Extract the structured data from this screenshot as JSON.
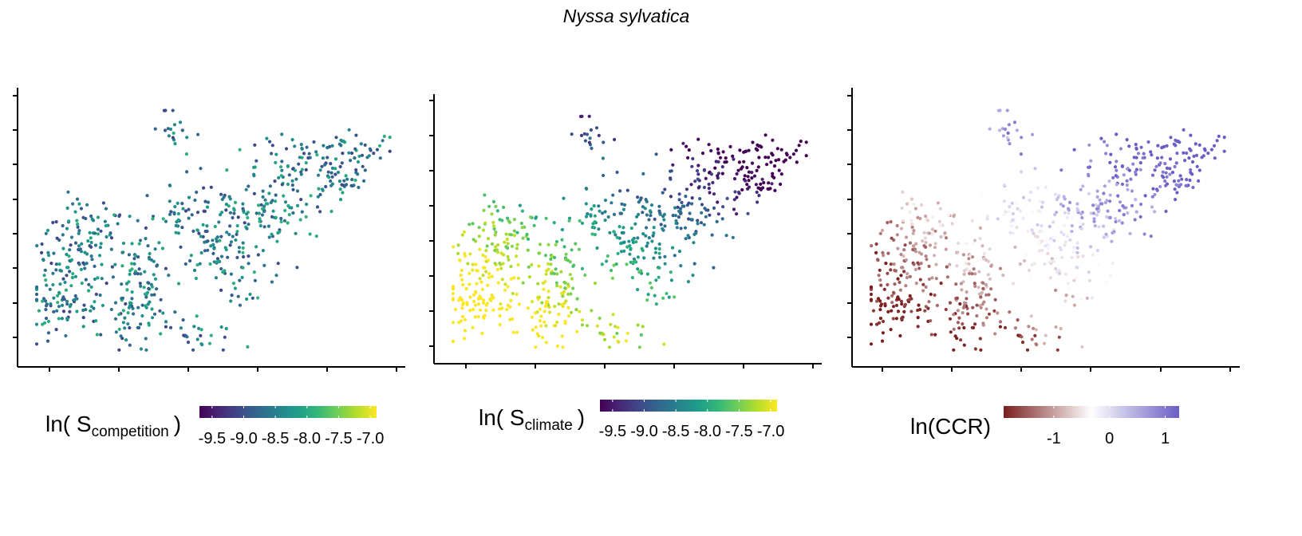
{
  "title": "Nyssa sylvatica",
  "chart_data": [
    {
      "type": "scatter",
      "panel": "competition",
      "legend": {
        "title_prefix": "ln(",
        "title_main": "S",
        "title_sub": "competition",
        "title_suffix": ")",
        "scale": "viridis",
        "range": [
          -9.7,
          -6.9
        ],
        "ticks": [
          -9.5,
          -9.0,
          -8.5,
          -8.0,
          -7.5,
          -7.0
        ],
        "tick_labels": [
          "-9.5",
          "-9.0",
          "-8.5",
          "-8.0",
          "-7.5",
          "-7.0"
        ]
      },
      "axis_ticks_labeled": false
    },
    {
      "type": "scatter",
      "panel": "climate",
      "legend": {
        "title_prefix": "ln(",
        "title_main": "S",
        "title_sub": "climate",
        "title_suffix": ")",
        "scale": "viridis",
        "range": [
          -9.7,
          -6.9
        ],
        "ticks": [
          -9.5,
          -9.0,
          -8.5,
          -8.0,
          -7.5,
          -7.0
        ],
        "tick_labels": [
          "-9.5",
          "-9.0",
          "-8.5",
          "-8.0",
          "-7.5",
          "-7.0"
        ]
      },
      "axis_ticks_labeled": false
    },
    {
      "type": "scatter",
      "panel": "ccr",
      "legend": {
        "title": "ln(CCR)",
        "scale": "diverging",
        "colors": [
          "#7a1f1f",
          "#ffffff",
          "#6a5ec4"
        ],
        "range": [
          -1.9,
          1.25
        ],
        "ticks": [
          -1,
          0,
          1
        ],
        "tick_labels": [
          "-1",
          "0",
          "1"
        ]
      },
      "axis_ticks_labeled": false
    }
  ]
}
